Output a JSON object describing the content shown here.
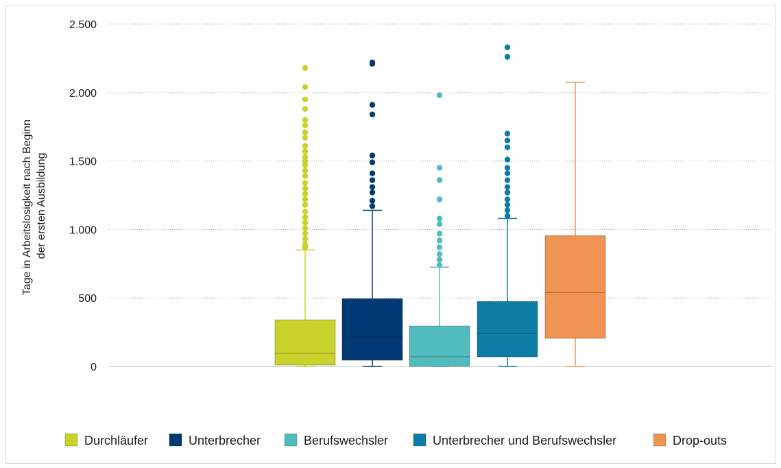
{
  "chart_data": {
    "type": "boxplot",
    "ylabel_lines": [
      "Tage in Arbeitslosigkeit nach Beginn",
      "der  ersten Ausbildung"
    ],
    "ylim": [
      0,
      2500
    ],
    "yticks": [
      0,
      500,
      1000,
      1500,
      2000,
      2500
    ],
    "ytick_labels": [
      "0",
      "500",
      "1.000",
      "1.500",
      "2.000",
      "2.500"
    ],
    "grid": true,
    "legend_position": "bottom",
    "series": [
      {
        "name": "Durchläufer",
        "color": "#c9d22a",
        "min": 0,
        "q1": 10,
        "median": 95,
        "q3": 340,
        "max": 850,
        "outliers": [
          870,
          890,
          930,
          970,
          1010,
          1050,
          1090,
          1130,
          1180,
          1220,
          1260,
          1300,
          1340,
          1390,
          1430,
          1470,
          1500,
          1530,
          1570,
          1610,
          1670,
          1710,
          1760,
          1800,
          1880,
          1950,
          2040,
          2180
        ]
      },
      {
        "name": "Unterbrecher",
        "color": "#003a75",
        "min": 0,
        "q1": 45,
        "median": 215,
        "q3": 495,
        "max": 1140,
        "outliers": [
          1170,
          1210,
          1270,
          1310,
          1360,
          1410,
          1490,
          1540,
          1840,
          1910,
          2210,
          2220
        ]
      },
      {
        "name": "Berufswechsler",
        "color": "#52bbbd",
        "min": 0,
        "q1": 0,
        "median": 70,
        "q3": 295,
        "max": 725,
        "outliers": [
          740,
          780,
          820,
          870,
          920,
          970,
          1040,
          1080,
          1220,
          1360,
          1450,
          1980
        ]
      },
      {
        "name": "Unterbrecher und Berufswechsler",
        "color": "#0d7da6",
        "min": 0,
        "q1": 70,
        "median": 240,
        "q3": 475,
        "max": 1080,
        "outliers": [
          1100,
          1140,
          1180,
          1220,
          1270,
          1310,
          1360,
          1410,
          1450,
          1510,
          1600,
          1650,
          1700,
          2260,
          2330
        ]
      },
      {
        "name": "Drop-outs",
        "color": "#ef9452",
        "min": 0,
        "q1": 205,
        "median": 540,
        "q3": 955,
        "max": 2075,
        "outliers": []
      }
    ]
  }
}
